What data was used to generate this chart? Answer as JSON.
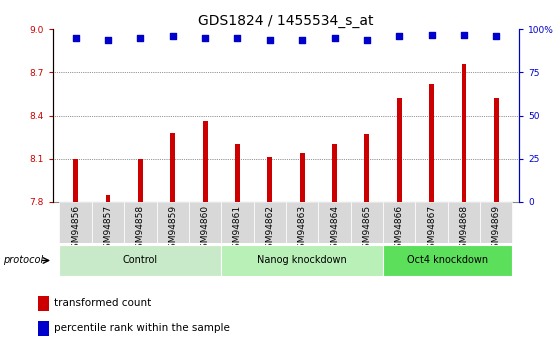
{
  "title": "GDS1824 / 1455534_s_at",
  "samples": [
    "GSM94856",
    "GSM94857",
    "GSM94858",
    "GSM94859",
    "GSM94860",
    "GSM94861",
    "GSM94862",
    "GSM94863",
    "GSM94864",
    "GSM94865",
    "GSM94866",
    "GSM94867",
    "GSM94868",
    "GSM94869"
  ],
  "transformed_count": [
    8.1,
    7.85,
    8.1,
    8.28,
    8.36,
    8.2,
    8.11,
    8.14,
    8.2,
    8.27,
    8.52,
    8.62,
    8.76,
    8.52
  ],
  "percentile_rank": [
    95,
    94,
    95,
    96,
    95,
    95,
    94,
    94,
    95,
    94,
    96,
    97,
    97,
    96
  ],
  "bar_color": "#cc0000",
  "dot_color": "#0000cc",
  "ylim_left": [
    7.8,
    9.0
  ],
  "ylim_right": [
    0,
    100
  ],
  "yticks_left": [
    7.8,
    8.1,
    8.4,
    8.7,
    9.0
  ],
  "yticks_right": [
    0,
    25,
    50,
    75,
    100
  ],
  "groups": [
    {
      "label": "Control",
      "start": 0,
      "end": 4,
      "color": "#c8eac8"
    },
    {
      "label": "Nanog knockdown",
      "start": 5,
      "end": 9,
      "color": "#b8f0b8"
    },
    {
      "label": "Oct4 knockdown",
      "start": 10,
      "end": 13,
      "color": "#5ce05c"
    }
  ],
  "protocol_label": "protocol",
  "legend_bar_label": "transformed count",
  "legend_dot_label": "percentile rank within the sample",
  "grid_color": "#333333",
  "cell_bg": "#d8d8d8",
  "plot_bg": "#ffffff",
  "bar_width": 0.15,
  "title_fontsize": 10,
  "tick_fontsize": 6.5,
  "label_fontsize": 8
}
